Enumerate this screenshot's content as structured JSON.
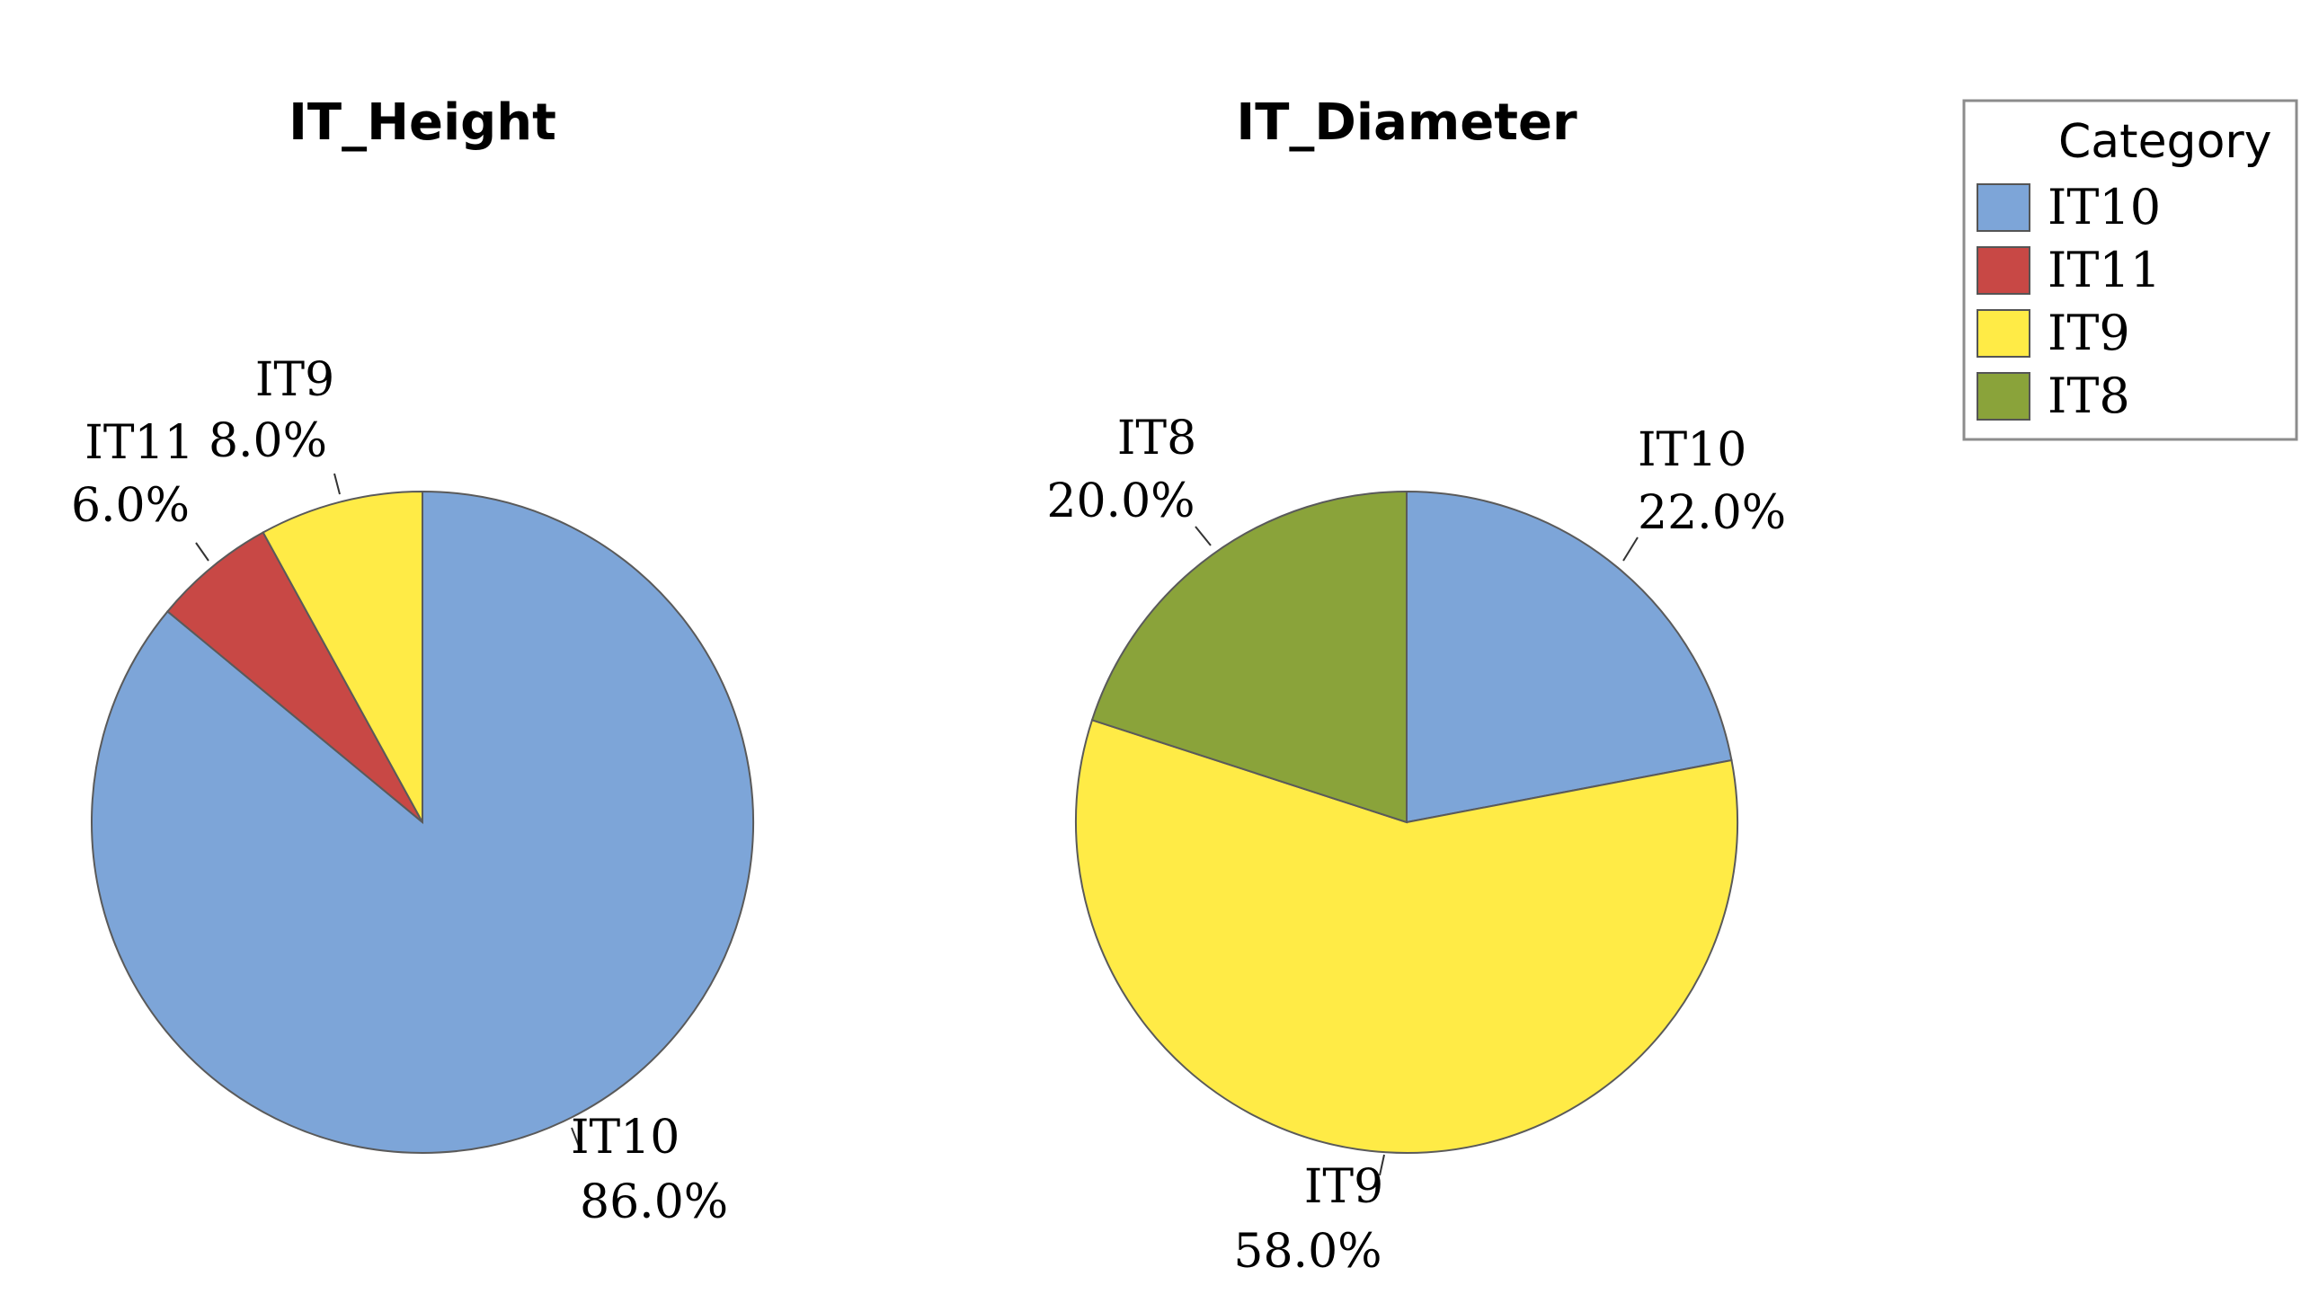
{
  "colors": {
    "IT10": "#7da5d8",
    "IT11": "#c84845",
    "IT9": "#ffeb46",
    "IT8": "#8aa33a",
    "outline": "#5a5a5a"
  },
  "legend": {
    "title": "Category",
    "items": [
      {
        "label": "IT10",
        "color": "#7da5d8"
      },
      {
        "label": "IT11",
        "color": "#c84845"
      },
      {
        "label": "IT9",
        "color": "#ffeb46"
      },
      {
        "label": "IT8",
        "color": "#8aa33a"
      }
    ],
    "placement": "top-right"
  },
  "chart_data": [
    {
      "type": "pie",
      "title": "IT_Height",
      "slices": [
        {
          "label": "IT10",
          "value": 86.0,
          "pct_text": "86.0%"
        },
        {
          "label": "IT11",
          "value": 6.0,
          "pct_text": "6.0%"
        },
        {
          "label": "IT9",
          "value": 8.0,
          "pct_text": "8.0%"
        }
      ]
    },
    {
      "type": "pie",
      "title": "IT_Diameter",
      "slices": [
        {
          "label": "IT10",
          "value": 22.0,
          "pct_text": "22.0%"
        },
        {
          "label": "IT9",
          "value": 58.0,
          "pct_text": "58.0%"
        },
        {
          "label": "IT8",
          "value": 20.0,
          "pct_text": "20.0%"
        }
      ]
    }
  ]
}
